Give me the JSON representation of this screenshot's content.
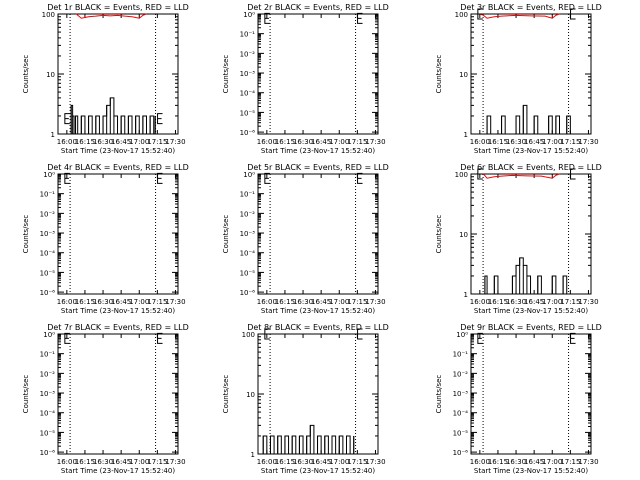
{
  "figure": {
    "x_tick_labels": [
      "16:00",
      "16:15",
      "16:30",
      "16:45",
      "17:00",
      "17:15",
      "17:30"
    ],
    "x_label": "Start Time (23-Nov-17 15:52:40)",
    "y_label": "Counts/sec",
    "colors": {
      "events": "#000000",
      "lld": "#ff0000",
      "axes": "#000000"
    }
  },
  "chart_data": [
    {
      "type": "line",
      "title": "Det 1r BLACK = Events, RED = LLD",
      "yscale": "log",
      "ylim": [
        1,
        100
      ],
      "yticks": [
        "1",
        "10",
        "100"
      ],
      "xlim": [
        15.878,
        17.535
      ],
      "dotted_x": [
        16.045,
        17.225
      ],
      "events": [
        [
          16.05,
          1
        ],
        [
          16.06,
          3
        ],
        [
          16.08,
          2
        ],
        [
          16.1,
          1
        ],
        [
          16.12,
          2
        ],
        [
          16.15,
          1
        ],
        [
          16.2,
          2
        ],
        [
          16.25,
          1
        ],
        [
          16.3,
          2
        ],
        [
          16.35,
          1
        ],
        [
          16.4,
          2
        ],
        [
          16.45,
          1
        ],
        [
          16.5,
          2
        ],
        [
          16.55,
          3
        ],
        [
          16.6,
          4
        ],
        [
          16.65,
          2
        ],
        [
          16.7,
          1
        ],
        [
          16.75,
          2
        ],
        [
          16.8,
          1
        ],
        [
          16.85,
          2
        ],
        [
          16.9,
          1
        ],
        [
          16.95,
          2
        ],
        [
          17.0,
          1
        ],
        [
          17.05,
          2
        ],
        [
          17.1,
          1
        ],
        [
          17.15,
          2
        ],
        [
          17.2,
          1
        ],
        [
          17.22,
          2
        ]
      ],
      "lld": [
        [
          16.13,
          100
        ],
        [
          16.2,
          85
        ],
        [
          16.3,
          90
        ],
        [
          16.4,
          92
        ],
        [
          16.5,
          95
        ],
        [
          16.6,
          93
        ],
        [
          16.7,
          95
        ],
        [
          16.8,
          92
        ],
        [
          16.9,
          90
        ],
        [
          17.0,
          85
        ],
        [
          17.05,
          95
        ],
        [
          17.1,
          100
        ]
      ],
      "marker_y": 1.8
    },
    {
      "type": "line",
      "title": "Det 2r BLACK = Events, RED = LLD",
      "yscale": "log",
      "ylim": [
        8e-07,
        1
      ],
      "yticks": [
        "10⁻⁶",
        "10⁻⁵",
        "10⁻⁴",
        "10⁻³",
        "10⁻²",
        "10⁻¹",
        "10⁰"
      ],
      "xlim": [
        15.878,
        17.535
      ],
      "dotted_x": [
        16.045,
        17.225
      ],
      "events": [],
      "lld": [],
      "marker_y": 0.6
    },
    {
      "type": "line",
      "title": "Det 3r BLACK = Events, RED = LLD",
      "yscale": "log",
      "ylim": [
        1,
        100
      ],
      "yticks": [
        "1",
        "10",
        "100"
      ],
      "xlim": [
        15.878,
        17.535
      ],
      "dotted_x": [
        16.045,
        17.225
      ],
      "events": [
        [
          16.05,
          1
        ],
        [
          16.1,
          2
        ],
        [
          16.15,
          1
        ],
        [
          16.3,
          2
        ],
        [
          16.35,
          1
        ],
        [
          16.5,
          2
        ],
        [
          16.55,
          1
        ],
        [
          16.6,
          3
        ],
        [
          16.65,
          1
        ],
        [
          16.75,
          2
        ],
        [
          16.8,
          1
        ],
        [
          16.95,
          2
        ],
        [
          17.0,
          1
        ],
        [
          17.05,
          2
        ],
        [
          17.1,
          1
        ],
        [
          17.2,
          2
        ],
        [
          17.25,
          1
        ]
      ],
      "lld": [
        [
          16.0,
          100
        ],
        [
          16.05,
          95
        ],
        [
          16.1,
          85
        ],
        [
          16.2,
          90
        ],
        [
          16.3,
          92
        ],
        [
          16.5,
          95
        ],
        [
          16.7,
          93
        ],
        [
          16.9,
          92
        ],
        [
          17.0,
          85
        ],
        [
          17.05,
          95
        ],
        [
          17.1,
          100
        ]
      ],
      "marker_y": 100
    },
    {
      "type": "line",
      "title": "Det 4r BLACK = Events, RED = LLD",
      "yscale": "log",
      "ylim": [
        8e-07,
        1
      ],
      "yticks": [
        "10⁻⁶",
        "10⁻⁵",
        "10⁻⁴",
        "10⁻³",
        "10⁻²",
        "10⁻¹",
        "10⁰"
      ],
      "xlim": [
        15.878,
        17.535
      ],
      "dotted_x": [
        16.045,
        17.225
      ],
      "events": [],
      "lld": [],
      "marker_y": 0.6
    },
    {
      "type": "line",
      "title": "Det 5r BLACK = Events, RED = LLD",
      "yscale": "log",
      "ylim": [
        8e-07,
        1
      ],
      "yticks": [
        "10⁻⁶",
        "10⁻⁵",
        "10⁻⁴",
        "10⁻³",
        "10⁻²",
        "10⁻¹",
        "10⁰"
      ],
      "xlim": [
        15.878,
        17.535
      ],
      "dotted_x": [
        16.045,
        17.225
      ],
      "events": [],
      "lld": [],
      "marker_y": 0.6
    },
    {
      "type": "line",
      "title": "Det 6r BLACK = Events, RED = LLD",
      "yscale": "log",
      "ylim": [
        1,
        100
      ],
      "yticks": [
        "1",
        "10",
        "100"
      ],
      "xlim": [
        15.878,
        17.535
      ],
      "dotted_x": [
        16.045,
        17.225
      ],
      "events": [
        [
          16.05,
          1
        ],
        [
          16.07,
          2
        ],
        [
          16.1,
          1
        ],
        [
          16.2,
          2
        ],
        [
          16.25,
          1
        ],
        [
          16.45,
          2
        ],
        [
          16.5,
          3
        ],
        [
          16.55,
          4
        ],
        [
          16.6,
          3
        ],
        [
          16.65,
          2
        ],
        [
          16.7,
          1
        ],
        [
          16.8,
          2
        ],
        [
          16.85,
          1
        ],
        [
          17.0,
          2
        ],
        [
          17.05,
          1
        ],
        [
          17.15,
          2
        ],
        [
          17.2,
          1
        ]
      ],
      "lld": [
        [
          16.05,
          100
        ],
        [
          16.1,
          85
        ],
        [
          16.2,
          90
        ],
        [
          16.3,
          92
        ],
        [
          16.45,
          95
        ],
        [
          16.65,
          93
        ],
        [
          16.85,
          92
        ],
        [
          17.0,
          85
        ],
        [
          17.05,
          95
        ],
        [
          17.1,
          100
        ]
      ],
      "marker_y": 100
    },
    {
      "type": "line",
      "title": "Det 7r BLACK = Events, RED = LLD",
      "yscale": "log",
      "ylim": [
        8e-07,
        1
      ],
      "yticks": [
        "10⁻⁶",
        "10⁻⁵",
        "10⁻⁴",
        "10⁻³",
        "10⁻²",
        "10⁻¹",
        "10⁰"
      ],
      "xlim": [
        15.878,
        17.535
      ],
      "dotted_x": [
        16.045,
        17.225
      ],
      "events": [],
      "lld": [],
      "marker_y": 0.6
    },
    {
      "type": "line",
      "title": "Det 8r BLACK = Events, RED = LLD",
      "yscale": "log",
      "ylim": [
        1,
        100
      ],
      "yticks": [
        "1",
        "10",
        "100"
      ],
      "xlim": [
        15.878,
        17.535
      ],
      "dotted_x": [
        16.045,
        17.225
      ],
      "events": [
        [
          15.95,
          2
        ],
        [
          16.0,
          1
        ],
        [
          16.05,
          2
        ],
        [
          16.1,
          1
        ],
        [
          16.15,
          2
        ],
        [
          16.2,
          1
        ],
        [
          16.25,
          2
        ],
        [
          16.3,
          1
        ],
        [
          16.35,
          2
        ],
        [
          16.4,
          1
        ],
        [
          16.45,
          2
        ],
        [
          16.5,
          1
        ],
        [
          16.55,
          2
        ],
        [
          16.6,
          3
        ],
        [
          16.65,
          1
        ],
        [
          16.7,
          2
        ],
        [
          16.75,
          1
        ],
        [
          16.8,
          2
        ],
        [
          16.85,
          1
        ],
        [
          16.9,
          2
        ],
        [
          16.95,
          1
        ],
        [
          17.0,
          2
        ],
        [
          17.05,
          1
        ],
        [
          17.1,
          2
        ],
        [
          17.15,
          1
        ],
        [
          17.2,
          2
        ]
      ],
      "lld": [],
      "marker_y": 100
    },
    {
      "type": "line",
      "title": "Det 9r BLACK = Events, RED = LLD",
      "yscale": "log",
      "ylim": [
        8e-07,
        1
      ],
      "yticks": [
        "10⁻⁶",
        "10⁻⁵",
        "10⁻⁴",
        "10⁻³",
        "10⁻²",
        "10⁻¹",
        "10⁰"
      ],
      "xlim": [
        15.878,
        17.535
      ],
      "dotted_x": [
        16.045,
        17.225
      ],
      "events": [],
      "lld": [],
      "marker_y": 0.6
    }
  ]
}
